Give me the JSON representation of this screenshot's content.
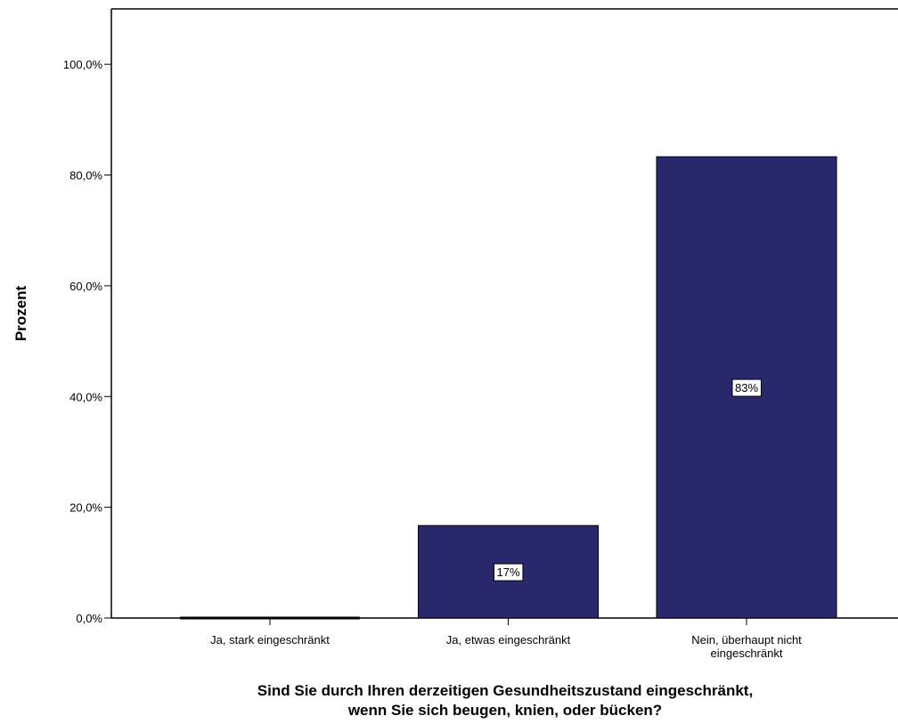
{
  "chart_data": {
    "type": "bar",
    "categories": [
      [
        "Ja, stark eingeschränkt"
      ],
      [
        "Ja, etwas eingeschränkt"
      ],
      [
        "Nein, überhaupt nicht",
        "eingeschränkt"
      ]
    ],
    "values": [
      0,
      16.7,
      83.3
    ],
    "data_labels": [
      "",
      "17%",
      "83%"
    ],
    "title": "",
    "xlabel": [
      "Sind Sie durch Ihren derzeitigen Gesundheitszustand eingeschränkt,",
      "wenn Sie sich beugen, knien, oder bücken?"
    ],
    "ylabel": "Prozent",
    "ylim": [
      0,
      110
    ],
    "yticks": [
      0,
      20,
      40,
      60,
      80,
      100
    ],
    "ytick_labels": [
      "0,0%",
      "20,0%",
      "40,0%",
      "60,0%",
      "80,0%",
      "100,0%"
    ],
    "grid": false,
    "legend": "none",
    "colors": {
      "bar_fill": "#29286d",
      "bar_stroke": "#000000",
      "axis": "#000000",
      "frame": "#000000",
      "label_box_fill": "#ffffff"
    }
  }
}
